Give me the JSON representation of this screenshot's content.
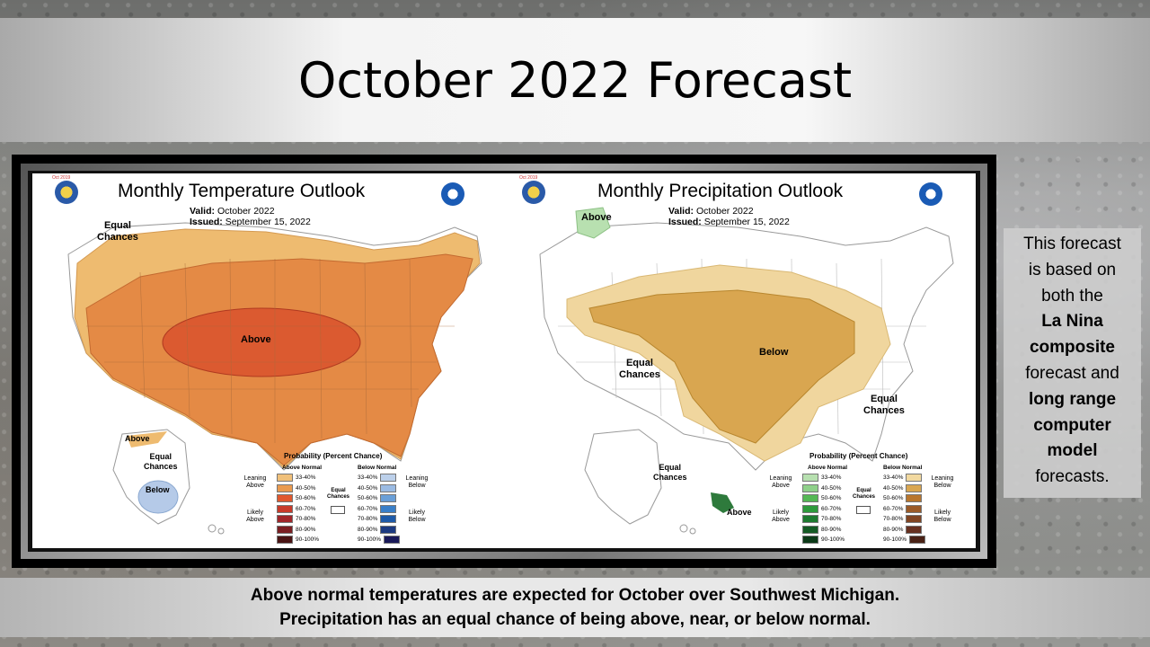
{
  "slide": {
    "title": "October 2022 Forecast",
    "caption_line1": "Above normal temperatures are expected for October over Southwest Michigan.",
    "caption_line2": "Precipitation has an equal chance of being above, near, or below normal.",
    "side_note": {
      "t1": "This forecast",
      "t2": "is based on",
      "t3": "both the",
      "b1": "La Nina",
      "b2": "composite",
      "t4": "forecast and",
      "b3": "long range",
      "b4": "computer",
      "b5": "model",
      "t5": "forecasts."
    }
  },
  "temp_map": {
    "title": "Monthly Temperature Outlook",
    "valid_label": "Valid:",
    "valid_value": "October 2022",
    "issued_label": "Issued:",
    "issued_value": "September 15, 2022",
    "label_equal_1": "Equal",
    "label_equal_2": "Chances",
    "label_above_main": "Above",
    "label_above_ak": "Above",
    "label_equal_ak_1": "Equal",
    "label_equal_ak_2": "Chances",
    "label_below_ak": "Below",
    "logo_text": "Oct 2019"
  },
  "precip_map": {
    "title": "Monthly Precipitation Outlook",
    "valid_label": "Valid:",
    "valid_value": "October 2022",
    "issued_label": "Issued:",
    "issued_value": "September 15, 2022",
    "label_above_nw": "Above",
    "label_below_main": "Below",
    "label_equal_w_1": "Equal",
    "label_equal_w_2": "Chances",
    "label_equal_e_1": "Equal",
    "label_equal_e_2": "Chances",
    "label_equal_ak_1": "Equal",
    "label_equal_ak_2": "Chances",
    "label_above_ak": "Above",
    "logo_text": "Oct 2019"
  },
  "legend_temp": {
    "title": "Probability (Percent Chance)",
    "col_left": "Above Normal",
    "col_right": "Below Normal",
    "leaning_left": "Leaning Above",
    "likely_left": "Likely Above",
    "leaning_right": "Leaning Below",
    "likely_right": "Likely Below",
    "equal_1": "Equal",
    "equal_2": "Chances",
    "ranges": [
      "33-40%",
      "40-50%",
      "50-60%",
      "60-70%",
      "70-80%",
      "80-90%",
      "90-100%"
    ],
    "colors_left": [
      "#f0c07a",
      "#e99a4f",
      "#e0582e",
      "#c83a2a",
      "#a0262a",
      "#7a1e22",
      "#4a1414"
    ],
    "colors_right": [
      "#bcd0ea",
      "#9bbbe3",
      "#6a9fd8",
      "#3a7fc8",
      "#1e5aa8",
      "#1c3a80",
      "#1a1a5a"
    ]
  },
  "legend_precip": {
    "title": "Probability (Percent Chance)",
    "col_left": "Above Normal",
    "col_right": "Below Normal",
    "leaning_left": "Leaning Above",
    "likely_left": "Likely Above",
    "leaning_right": "Leaning Below",
    "likely_right": "Likely Below",
    "equal_1": "Equal",
    "equal_2": "Chances",
    "ranges": [
      "33-40%",
      "40-50%",
      "50-60%",
      "60-70%",
      "70-80%",
      "80-90%",
      "90-100%"
    ],
    "colors_left": [
      "#b7e0b0",
      "#8fd08a",
      "#55b855",
      "#2e9a3c",
      "#1e7a30",
      "#145a24",
      "#0c3a18"
    ],
    "colors_right": [
      "#f2d9a0",
      "#d9a650",
      "#b8762e",
      "#9a5a28",
      "#804422",
      "#663020",
      "#4a2216"
    ]
  },
  "colors": {
    "temp_lean": "#eebb70",
    "temp_mid": "#e48a45",
    "temp_core": "#db5a30",
    "temp_below": "#b5cae8",
    "precip_lean": "#f0d69e",
    "precip_mid": "#d9a650",
    "precip_above": "#b8e0b0",
    "precip_above_ak": "#2e7a3c"
  }
}
